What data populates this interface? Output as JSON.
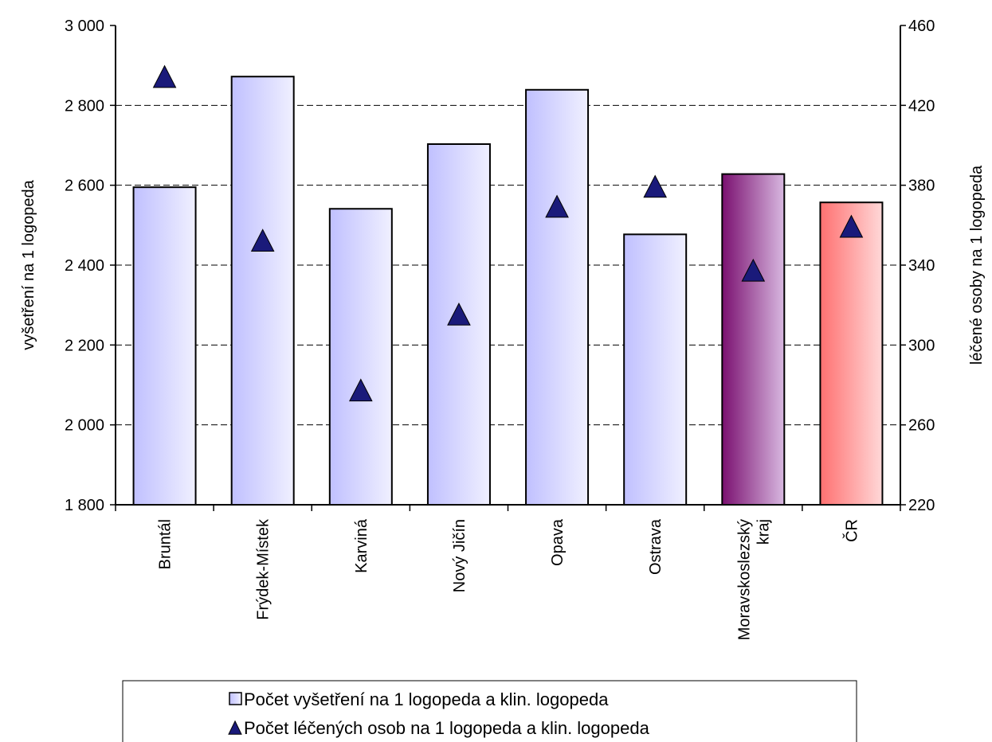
{
  "chart_data": {
    "type": "bar",
    "categories": [
      "Bruntál",
      "Frýdek-Místek",
      "Karviná",
      "Nový Jičín",
      "Opava",
      "Ostrava",
      "Moravskoslezský kraj",
      "ČR"
    ],
    "category_lines": [
      [
        "Bruntál"
      ],
      [
        "Frýdek-Místek"
      ],
      [
        "Karviná"
      ],
      [
        "Nový Jičín"
      ],
      [
        "Opava"
      ],
      [
        "Ostrava"
      ],
      [
        "Moravskoslezský",
        "kraj"
      ],
      [
        "ČR"
      ]
    ],
    "series": [
      {
        "name": "Počet vyšetření na 1 logopeda a klin. logopeda",
        "type": "bar",
        "axis": "left",
        "values": [
          2595,
          2872,
          2541,
          2703,
          2839,
          2477,
          2628,
          2557
        ]
      },
      {
        "name": "Počet léčených osob na 1 logopeda a klin. logopeda",
        "type": "scatter",
        "marker": "triangle",
        "axis": "right",
        "values": [
          434,
          352,
          277,
          315,
          369,
          379,
          337,
          359
        ]
      }
    ],
    "bar_styles": [
      "blue",
      "blue",
      "blue",
      "blue",
      "blue",
      "blue",
      "purple",
      "red"
    ],
    "colors": {
      "bar_blue_dark": "#c0c0ff",
      "bar_blue_light": "#f0f0ff",
      "bar_purple_dark": "#7a1070",
      "bar_purple_light": "#d8b8e0",
      "bar_red_dark": "#ff7070",
      "bar_red_light": "#ffd8d8",
      "marker": "#1a1a7a"
    },
    "y_left": {
      "label": "vyšetření na 1 logopeda",
      "lim": [
        1800,
        3000
      ],
      "ticks": [
        1800,
        2000,
        2200,
        2400,
        2600,
        2800,
        3000
      ],
      "tick_labels": [
        "1 800",
        "2 000",
        "2 200",
        "2 400",
        "2 600",
        "2 800",
        "3 000"
      ]
    },
    "y_right": {
      "label": "léčené osoby na 1 logopeda",
      "lim": [
        220,
        460
      ],
      "ticks": [
        220,
        260,
        300,
        340,
        380,
        420,
        460
      ],
      "tick_labels": [
        "220",
        "260",
        "300",
        "340",
        "380",
        "420",
        "460"
      ]
    },
    "grid": "horizontal-dashed",
    "legend_position": "bottom"
  }
}
